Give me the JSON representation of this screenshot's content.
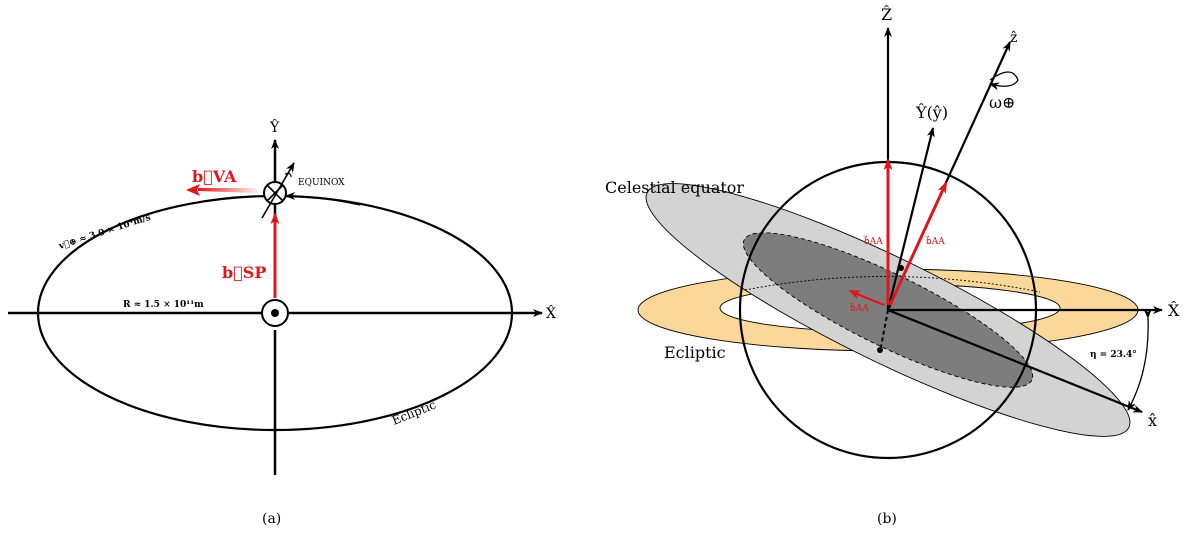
{
  "panel_a": {
    "caption": "(a)",
    "axis_y": "Ŷ",
    "axis_x": "X̂",
    "equinox": "EQUINOX",
    "b_va": "b⃗VA",
    "b_sp": "b⃗SP",
    "velocity": "v⃗⊕ ≈ 3.0 × 10⁴m/s",
    "radius": "R ≈ 1.5 × 10¹¹m",
    "ecliptic": "Ecliptic"
  },
  "panel_b": {
    "caption": "(b)",
    "axis_Z": "Ẑ",
    "axis_z": "ẑ",
    "axis_Y": "Ŷ(ŷ)",
    "omega": "ω⊕",
    "axis_X": "X̂",
    "axis_x": "x̂",
    "celestial_equator": "Celestial equator",
    "ecliptic": "Ecliptic",
    "eta": "η = 23.4°",
    "b_AA_1": "b⃗AA",
    "b_AA_2": "b⃗AA",
    "b_AA_3": "b⃗AA"
  },
  "colors": {
    "accent_red": "#e0161b",
    "ecliptic_fill": "#fbd79a",
    "equator_fill": "#d3d3d3",
    "equator_inner": "#7d7d7d"
  }
}
